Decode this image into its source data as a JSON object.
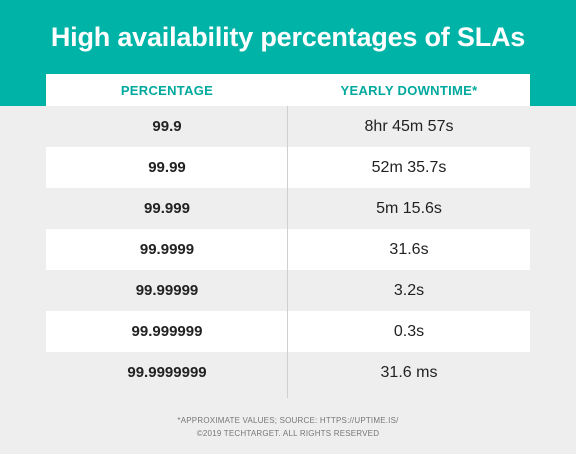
{
  "title": "High availability percentages of SLAs",
  "table": {
    "headers": [
      "PERCENTAGE",
      "YEARLY DOWNTIME*"
    ],
    "rows": [
      [
        "99.9",
        "8hr 45m 57s"
      ],
      [
        "99.99",
        "52m 35.7s"
      ],
      [
        "99.999",
        "5m 15.6s"
      ],
      [
        "99.9999",
        "31.6s"
      ],
      [
        "99.99999",
        "3.2s"
      ],
      [
        "99.999999",
        "0.3s"
      ],
      [
        "99.9999999",
        "31.6 ms"
      ]
    ]
  },
  "footnote": {
    "line1": "*APPROXIMATE VALUES; SOURCE: HTTPS://UPTIME.IS/",
    "line2": "©2019 TECHTARGET. ALL RIGHTS RESERVED"
  },
  "colors": {
    "header_band": "#00b3a7",
    "header_text": "#00a99d",
    "row_white": "#ffffff",
    "row_gray": "#eeeeee"
  }
}
